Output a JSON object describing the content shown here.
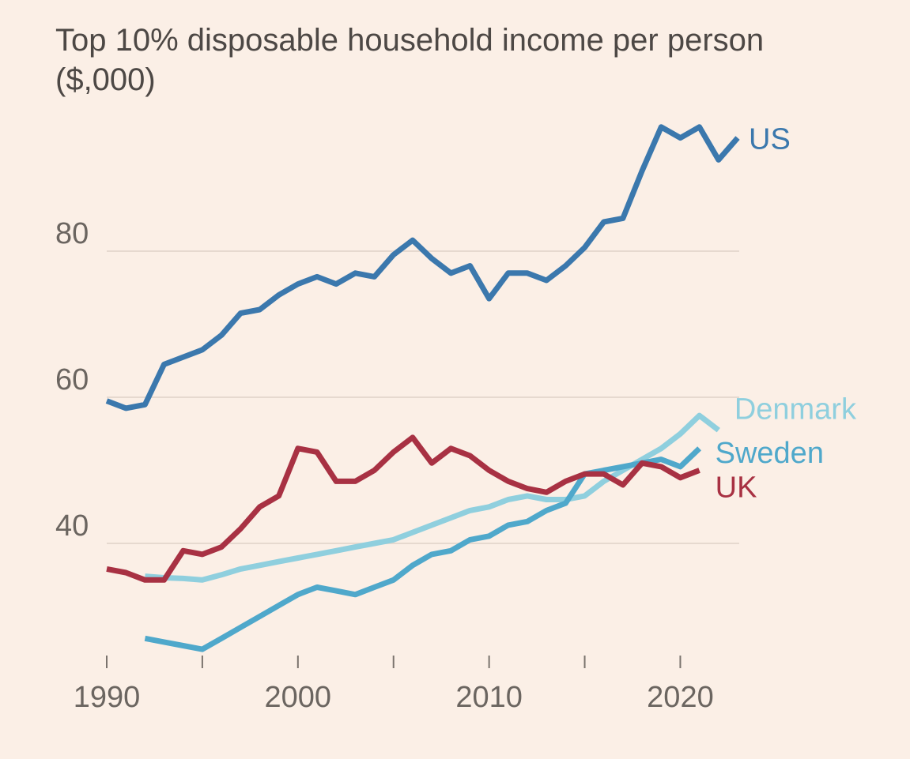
{
  "chart_data": {
    "type": "line",
    "title": "Top 10% disposable household income per person",
    "subtitle": "($,000)",
    "xlabel": "",
    "ylabel": "",
    "xlim": [
      1990,
      2023
    ],
    "ylim": [
      25,
      97
    ],
    "yticks": [
      40,
      60,
      80
    ],
    "xticks": [
      1990,
      1995,
      2000,
      2005,
      2010,
      2015,
      2020
    ],
    "xtick_labels": [
      {
        "value": 1990,
        "label": "1990"
      },
      {
        "value": 2000,
        "label": "2000"
      },
      {
        "value": 2010,
        "label": "2010"
      },
      {
        "value": 2020,
        "label": "2020"
      }
    ],
    "grid": true,
    "series": [
      {
        "name": "US",
        "color": "#3b78ad",
        "x": [
          1990,
          1991,
          1992,
          1993,
          1994,
          1995,
          1996,
          1997,
          1998,
          1999,
          2000,
          2001,
          2002,
          2003,
          2004,
          2005,
          2006,
          2007,
          2008,
          2009,
          2010,
          2011,
          2012,
          2013,
          2014,
          2015,
          2016,
          2017,
          2018,
          2019,
          2020,
          2021,
          2022,
          2023
        ],
        "y": [
          59.5,
          58.5,
          59,
          64.5,
          65.5,
          66.5,
          68.5,
          71.5,
          72,
          74,
          75.5,
          76.5,
          75.5,
          77,
          76.5,
          79.5,
          81.5,
          79,
          77,
          78,
          73.5,
          77,
          77,
          76,
          78,
          80.5,
          84,
          84.5,
          91,
          97,
          95.5,
          97,
          92.5,
          95.5
        ]
      },
      {
        "name": "Denmark",
        "color": "#8fcfde",
        "x": [
          1992,
          1993,
          1994,
          1995,
          1996,
          1997,
          1998,
          1999,
          2000,
          2001,
          2002,
          2003,
          2004,
          2005,
          2006,
          2007,
          2008,
          2009,
          2010,
          2011,
          2012,
          2013,
          2014,
          2015,
          2016,
          2017,
          2018,
          2019,
          2020,
          2021,
          2022
        ],
        "y": [
          35.5,
          35.3,
          35.2,
          35,
          35.7,
          36.5,
          37,
          37.5,
          38,
          38.5,
          39,
          39.5,
          40,
          40.5,
          41.5,
          42.5,
          43.5,
          44.5,
          45,
          46,
          46.5,
          46,
          46,
          46.5,
          48.5,
          50,
          51.5,
          53,
          55,
          57.5,
          55.5
        ]
      },
      {
        "name": "Sweden",
        "color": "#4fa8cb",
        "x": [
          1992,
          1993,
          1994,
          1995,
          1996,
          1997,
          1998,
          1999,
          2000,
          2001,
          2002,
          2003,
          2004,
          2005,
          2006,
          2007,
          2008,
          2009,
          2010,
          2011,
          2012,
          2013,
          2014,
          2015,
          2016,
          2017,
          2018,
          2019,
          2020,
          2021
        ],
        "y": [
          27,
          26.5,
          26,
          25.5,
          27,
          28.5,
          30,
          31.5,
          33,
          34,
          33.5,
          33,
          34,
          35,
          37,
          38.5,
          39,
          40.5,
          41,
          42.5,
          43,
          44.5,
          45.5,
          49.5,
          50,
          50.5,
          51,
          51.5,
          50.5,
          53
        ]
      },
      {
        "name": "UK",
        "color": "#a83143",
        "x": [
          1990,
          1991,
          1992,
          1993,
          1994,
          1995,
          1996,
          1997,
          1998,
          1999,
          2000,
          2001,
          2002,
          2003,
          2004,
          2005,
          2006,
          2007,
          2008,
          2009,
          2010,
          2011,
          2012,
          2013,
          2014,
          2015,
          2016,
          2017,
          2018,
          2019,
          2020,
          2021
        ],
        "y": [
          36.5,
          36,
          35,
          35,
          39,
          38.5,
          39.5,
          42,
          45,
          46.5,
          53,
          52.5,
          48.5,
          48.5,
          50,
          52.5,
          54.5,
          51,
          53,
          52,
          50,
          48.5,
          47.5,
          47,
          48.5,
          49.5,
          49.5,
          48,
          51,
          50.5,
          49,
          50
        ]
      }
    ]
  }
}
